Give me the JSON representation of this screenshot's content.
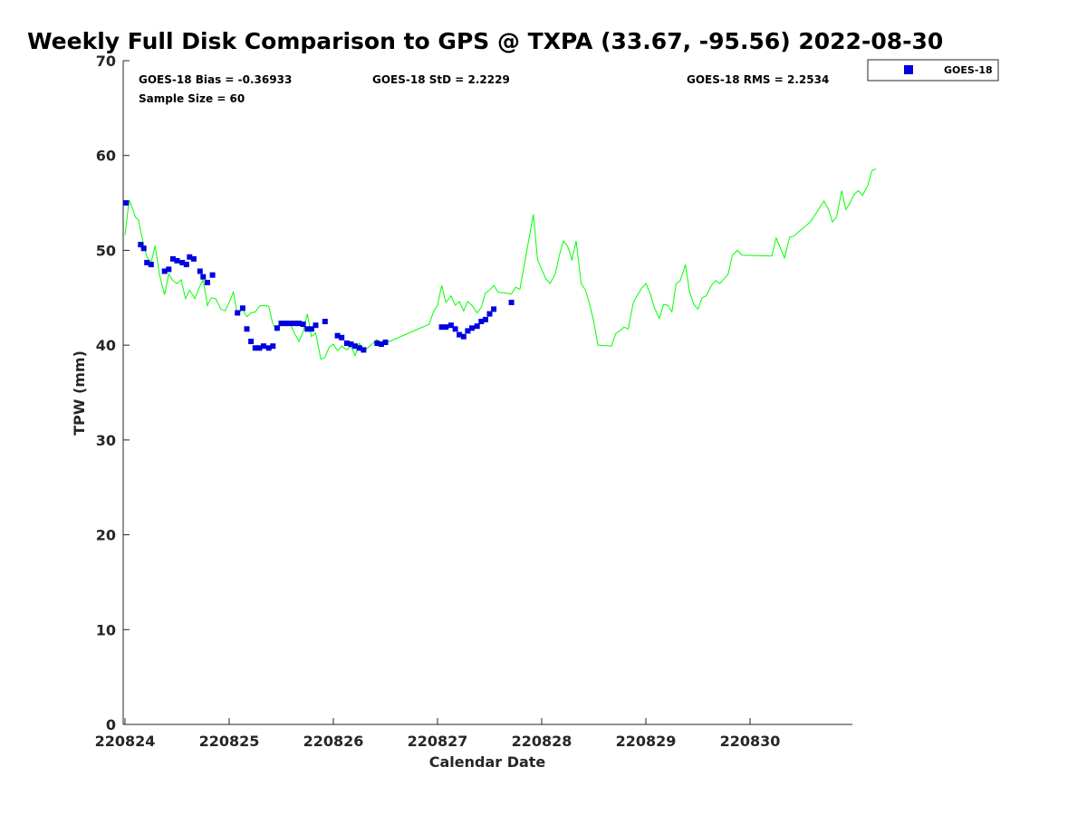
{
  "chart_data": {
    "type": "scatter",
    "title": "Weekly Full Disk Comparison to GPS @ TXPA (33.67, -95.56) 2022-08-30",
    "xlabel": "Calendar Date",
    "ylabel": "TPW (mm)",
    "xlim": [
      0,
      7
    ],
    "ylim": [
      0,
      70
    ],
    "x_unit": "days after 220824 00Z",
    "x_ticks": [
      0,
      1,
      2,
      3,
      4,
      5,
      6
    ],
    "x_tick_labels": [
      "220824",
      "220825",
      "220826",
      "220827",
      "220828",
      "220829",
      "220830"
    ],
    "y_ticks": [
      0,
      10,
      20,
      30,
      40,
      50,
      60,
      70
    ],
    "y_tick_labels": [
      "0",
      "10",
      "20",
      "30",
      "40",
      "50",
      "60",
      "70"
    ],
    "grid": false,
    "legend_position": "top-right",
    "stats": {
      "bias": "GOES-18 Bias = -0.36933",
      "std": "GOES-18 StD = 2.2229",
      "rms": "GOES-18 RMS = 2.2534",
      "sample": "Sample Size = 60"
    },
    "legend": [
      {
        "label": "GOES-18",
        "color": "#0000e0",
        "marker": "square"
      }
    ],
    "series": [
      {
        "name": "GOES-18",
        "kind": "scatter",
        "color": "#0000e0",
        "points": [
          [
            0.01,
            55.0
          ],
          [
            0.15,
            50.6
          ],
          [
            0.18,
            50.2
          ],
          [
            0.21,
            48.7
          ],
          [
            0.25,
            48.5
          ],
          [
            0.38,
            47.8
          ],
          [
            0.42,
            48.0
          ],
          [
            0.46,
            49.1
          ],
          [
            0.5,
            48.9
          ],
          [
            0.55,
            48.7
          ],
          [
            0.59,
            48.5
          ],
          [
            0.62,
            49.3
          ],
          [
            0.66,
            49.1
          ],
          [
            0.72,
            47.8
          ],
          [
            0.75,
            47.2
          ],
          [
            0.79,
            46.6
          ],
          [
            0.84,
            47.4
          ],
          [
            1.08,
            43.4
          ],
          [
            1.13,
            43.9
          ],
          [
            1.17,
            41.7
          ],
          [
            1.21,
            40.4
          ],
          [
            1.25,
            39.7
          ],
          [
            1.29,
            39.7
          ],
          [
            1.33,
            39.9
          ],
          [
            1.38,
            39.7
          ],
          [
            1.42,
            39.9
          ],
          [
            1.46,
            41.8
          ],
          [
            1.5,
            42.3
          ],
          [
            1.54,
            42.3
          ],
          [
            1.58,
            42.3
          ],
          [
            1.63,
            42.3
          ],
          [
            1.67,
            42.3
          ],
          [
            1.71,
            42.2
          ],
          [
            1.75,
            41.7
          ],
          [
            1.79,
            41.7
          ],
          [
            1.83,
            42.1
          ],
          [
            1.92,
            42.5
          ],
          [
            2.04,
            41.0
          ],
          [
            2.08,
            40.8
          ],
          [
            2.13,
            40.2
          ],
          [
            2.17,
            40.1
          ],
          [
            2.21,
            39.9
          ],
          [
            2.25,
            39.7
          ],
          [
            2.29,
            39.5
          ],
          [
            2.42,
            40.2
          ],
          [
            2.46,
            40.1
          ],
          [
            2.5,
            40.3
          ],
          [
            3.04,
            41.9
          ],
          [
            3.08,
            41.9
          ],
          [
            3.13,
            42.1
          ],
          [
            3.17,
            41.7
          ],
          [
            3.21,
            41.1
          ],
          [
            3.25,
            40.9
          ],
          [
            3.29,
            41.5
          ],
          [
            3.33,
            41.8
          ],
          [
            3.38,
            42.0
          ],
          [
            3.42,
            42.5
          ],
          [
            3.46,
            42.7
          ],
          [
            3.5,
            43.3
          ],
          [
            3.54,
            43.8
          ],
          [
            3.71,
            44.5
          ]
        ]
      },
      {
        "name": "GPS",
        "kind": "line",
        "color": "#00ff00",
        "points": [
          [
            0.0,
            51.6
          ],
          [
            0.04,
            55.3
          ],
          [
            0.08,
            54.2
          ],
          [
            0.1,
            53.5
          ],
          [
            0.13,
            53.2
          ],
          [
            0.17,
            51.0
          ],
          [
            0.21,
            49.3
          ],
          [
            0.25,
            48.7
          ],
          [
            0.29,
            50.5
          ],
          [
            0.33,
            47.5
          ],
          [
            0.38,
            45.3
          ],
          [
            0.42,
            47.5
          ],
          [
            0.46,
            46.8
          ],
          [
            0.5,
            46.5
          ],
          [
            0.54,
            46.9
          ],
          [
            0.58,
            44.9
          ],
          [
            0.62,
            45.8
          ],
          [
            0.67,
            44.9
          ],
          [
            0.71,
            46.0
          ],
          [
            0.75,
            46.9
          ],
          [
            0.79,
            44.2
          ],
          [
            0.83,
            45.0
          ],
          [
            0.87,
            44.9
          ],
          [
            0.92,
            43.8
          ],
          [
            0.96,
            43.6
          ],
          [
            1.0,
            44.5
          ],
          [
            1.04,
            45.6
          ],
          [
            1.08,
            43.2
          ],
          [
            1.13,
            43.8
          ],
          [
            1.17,
            43.0
          ],
          [
            1.21,
            43.4
          ],
          [
            1.25,
            43.5
          ],
          [
            1.29,
            44.1
          ],
          [
            1.33,
            44.2
          ],
          [
            1.38,
            44.1
          ],
          [
            1.42,
            42.2
          ],
          [
            1.46,
            41.5
          ],
          [
            1.5,
            42.3
          ],
          [
            1.54,
            42.3
          ],
          [
            1.58,
            42.4
          ],
          [
            1.62,
            41.4
          ],
          [
            1.67,
            40.4
          ],
          [
            1.71,
            41.4
          ],
          [
            1.75,
            43.3
          ],
          [
            1.79,
            40.9
          ],
          [
            1.83,
            41.3
          ],
          [
            1.88,
            38.5
          ],
          [
            1.92,
            38.7
          ],
          [
            1.96,
            39.8
          ],
          [
            2.0,
            40.1
          ],
          [
            2.04,
            39.4
          ],
          [
            2.08,
            39.9
          ],
          [
            2.13,
            39.5
          ],
          [
            2.17,
            39.9
          ],
          [
            2.21,
            38.9
          ],
          [
            2.25,
            40.2
          ],
          [
            2.29,
            39.5
          ],
          [
            2.33,
            39.7
          ],
          [
            2.38,
            40.2
          ],
          [
            2.42,
            40.6
          ],
          [
            2.46,
            39.9
          ],
          [
            2.5,
            40.3
          ],
          [
            2.54,
            40.4
          ],
          [
            2.92,
            42.2
          ],
          [
            2.96,
            43.5
          ],
          [
            3.0,
            44.2
          ],
          [
            3.04,
            46.3
          ],
          [
            3.08,
            44.5
          ],
          [
            3.13,
            45.2
          ],
          [
            3.17,
            44.2
          ],
          [
            3.21,
            44.6
          ],
          [
            3.25,
            43.6
          ],
          [
            3.29,
            44.6
          ],
          [
            3.33,
            44.2
          ],
          [
            3.38,
            43.4
          ],
          [
            3.42,
            44.0
          ],
          [
            3.46,
            45.5
          ],
          [
            3.5,
            45.8
          ],
          [
            3.54,
            46.3
          ],
          [
            3.58,
            45.6
          ],
          [
            3.71,
            45.4
          ],
          [
            3.75,
            46.1
          ],
          [
            3.79,
            45.9
          ],
          [
            3.92,
            53.8
          ],
          [
            3.96,
            49.0
          ],
          [
            4.0,
            48.0
          ],
          [
            4.04,
            47.0
          ],
          [
            4.08,
            46.5
          ],
          [
            4.13,
            47.5
          ],
          [
            4.17,
            49.5
          ],
          [
            4.21,
            51.0
          ],
          [
            4.25,
            50.4
          ],
          [
            4.29,
            49.0
          ],
          [
            4.33,
            51.0
          ],
          [
            4.38,
            46.5
          ],
          [
            4.42,
            45.8
          ],
          [
            4.46,
            44.3
          ],
          [
            4.5,
            42.5
          ],
          [
            4.54,
            40.0
          ],
          [
            4.67,
            39.9
          ],
          [
            4.71,
            41.2
          ],
          [
            4.75,
            41.5
          ],
          [
            4.79,
            41.9
          ],
          [
            4.83,
            41.7
          ],
          [
            4.88,
            44.5
          ],
          [
            4.92,
            45.3
          ],
          [
            4.96,
            46.0
          ],
          [
            5.0,
            46.5
          ],
          [
            5.04,
            45.5
          ],
          [
            5.08,
            44.0
          ],
          [
            5.13,
            42.8
          ],
          [
            5.17,
            44.3
          ],
          [
            5.21,
            44.2
          ],
          [
            5.25,
            43.5
          ],
          [
            5.29,
            46.5
          ],
          [
            5.33,
            46.8
          ],
          [
            5.38,
            48.5
          ],
          [
            5.42,
            45.6
          ],
          [
            5.46,
            44.3
          ],
          [
            5.5,
            43.8
          ],
          [
            5.54,
            45.0
          ],
          [
            5.58,
            45.2
          ],
          [
            5.63,
            46.3
          ],
          [
            5.67,
            46.8
          ],
          [
            5.71,
            46.5
          ],
          [
            5.75,
            47.0
          ],
          [
            5.79,
            47.5
          ],
          [
            5.83,
            49.5
          ],
          [
            5.88,
            50.0
          ],
          [
            5.92,
            49.5
          ],
          [
            6.21,
            49.4
          ],
          [
            6.25,
            51.3
          ],
          [
            6.33,
            49.2
          ],
          [
            6.38,
            51.4
          ],
          [
            6.42,
            51.5
          ],
          [
            6.58,
            53.0
          ],
          [
            6.71,
            55.2
          ],
          [
            6.75,
            54.4
          ],
          [
            6.79,
            53.0
          ],
          [
            6.83,
            53.5
          ],
          [
            6.88,
            56.3
          ],
          [
            6.92,
            54.3
          ],
          [
            6.96,
            55.0
          ],
          [
            7.0,
            55.9
          ],
          [
            7.04,
            56.3
          ],
          [
            7.08,
            55.8
          ],
          [
            7.13,
            56.8
          ],
          [
            7.17,
            58.4
          ],
          [
            7.21,
            58.6
          ]
        ]
      }
    ]
  }
}
